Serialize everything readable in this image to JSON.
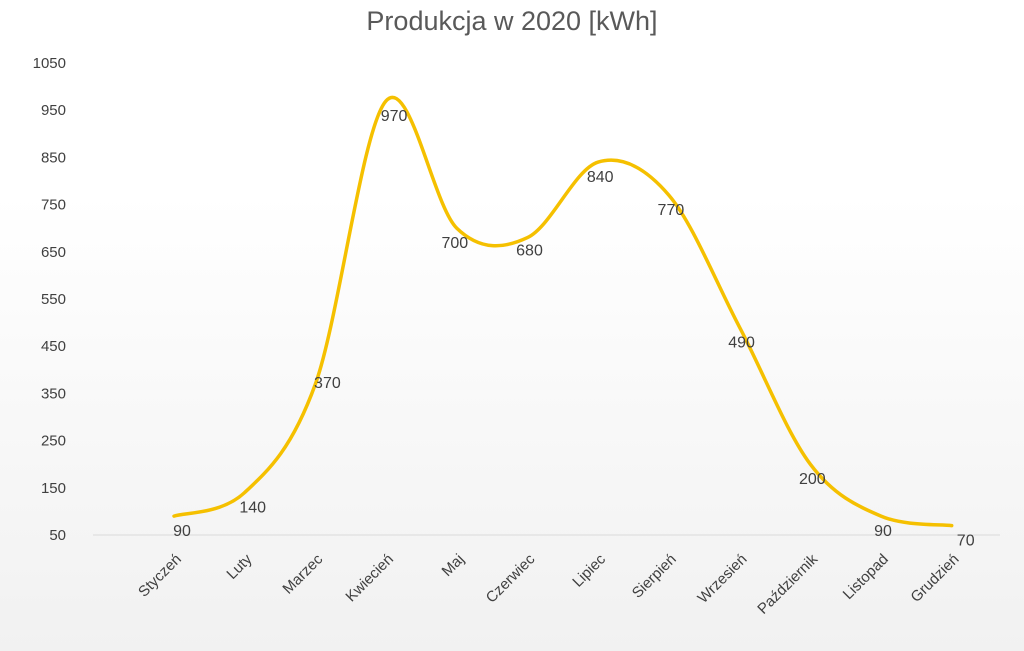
{
  "chart_data": {
    "type": "line",
    "title": "Produkcja w 2020 [kWh]",
    "xlabel": "",
    "ylabel": "",
    "categories": [
      "Styczeń",
      "Luty",
      "Marzec",
      "Kwiecień",
      "Maj",
      "Czerwiec",
      "Lipiec",
      "Sierpień",
      "Wrzesień",
      "Październik",
      "Listopad",
      "Grudzień"
    ],
    "series": [
      {
        "values": [
          90,
          140,
          370,
          970,
          700,
          680,
          840,
          770,
          490,
          200,
          90,
          70
        ]
      }
    ],
    "yticks": [
      50,
      150,
      250,
      350,
      450,
      550,
      650,
      750,
      850,
      950,
      1050
    ],
    "ylim": [
      50,
      1050
    ],
    "grid": false,
    "legend": "none",
    "smooth": true,
    "line_color": "#f5c000"
  }
}
